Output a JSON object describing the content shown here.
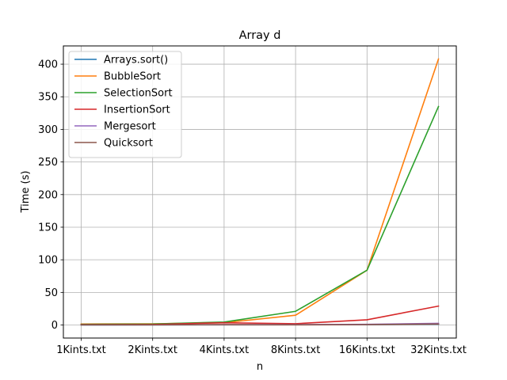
{
  "chart_data": {
    "type": "line",
    "title": "Array d",
    "xlabel": "n",
    "ylabel": "Time (s)",
    "categories": [
      "1Kints.txt",
      "2Kints.txt",
      "4Kints.txt",
      "8Kints.txt",
      "16Kints.txt",
      "32Kints.txt"
    ],
    "ylim": [
      -20,
      428
    ],
    "yticks": [
      0,
      50,
      100,
      150,
      200,
      250,
      300,
      350,
      400
    ],
    "grid": true,
    "legend_position": "top-left",
    "series": [
      {
        "name": "Arrays.sort()",
        "color": "#1f77b4",
        "values": [
          0.1,
          0.2,
          0.3,
          0.4,
          0.6,
          1.2
        ]
      },
      {
        "name": "BubbleSort",
        "color": "#ff7f0e",
        "values": [
          1.5,
          1.8,
          3.5,
          15,
          84,
          408
        ]
      },
      {
        "name": "SelectionSort",
        "color": "#2ca02c",
        "values": [
          1.0,
          1.5,
          4.5,
          21,
          84,
          335
        ]
      },
      {
        "name": "InsertionSort",
        "color": "#d62728",
        "values": [
          0.5,
          0.8,
          3.5,
          2.0,
          8,
          29
        ]
      },
      {
        "name": "Mergesort",
        "color": "#9467bd",
        "values": [
          0.2,
          0.3,
          0.5,
          0.5,
          1.0,
          2.5
        ]
      },
      {
        "name": "Quicksort",
        "color": "#8c564b",
        "values": [
          0.2,
          0.3,
          0.4,
          0.3,
          0.5,
          1.5
        ]
      }
    ]
  }
}
